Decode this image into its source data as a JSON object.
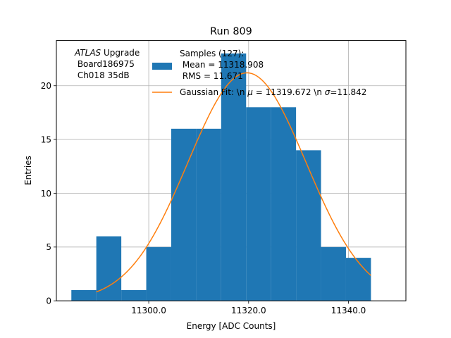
{
  "chart_data": {
    "type": "bar",
    "title": "Run 809",
    "xlabel": "Energy [ADC Counts]",
    "ylabel": "Entries",
    "xlim": [
      11281.5,
      11351.5
    ],
    "ylim": [
      0,
      24.2
    ],
    "grid": true,
    "x_ticks": [
      11300.0,
      11320.0,
      11340.0
    ],
    "x_tick_labels": [
      "11300.0",
      "11320.0",
      "11340.0"
    ],
    "y_ticks": [
      0,
      5,
      10,
      15,
      20
    ],
    "y_tick_labels": [
      "0",
      "5",
      "10",
      "15",
      "20"
    ],
    "histogram": {
      "bin_edges": [
        11284.5,
        11289.5,
        11294.5,
        11299.5,
        11304.5,
        11309.5,
        11314.5,
        11319.5,
        11324.5,
        11329.5,
        11334.5,
        11339.5,
        11344.5
      ],
      "counts": [
        1,
        6,
        1,
        5,
        16,
        16,
        23,
        18,
        18,
        14,
        5,
        4
      ],
      "color": "#1f77b4"
    },
    "fit": {
      "mu": 11319.672,
      "sigma": 11.842,
      "amplitude": 21.2,
      "x_range": [
        11289.5,
        11344.5
      ],
      "color": "#ff7f0e"
    },
    "annotation": {
      "italic": "ATLAS",
      "line1": " Upgrade",
      "line2": " Board186975",
      "line3": " Ch018 35dB"
    },
    "legend": {
      "placement": "top-center",
      "hist_line1": "Samples (127):",
      "hist_line2": " Mean = 11318.908",
      "hist_line3": " RMS = 11.671",
      "fit_prefix": "Gaussian Fit: \\n ",
      "fit_mu_symbol": "μ",
      "fit_middle": " = 11319.672 \\n ",
      "fit_sigma_symbol": "σ",
      "fit_suffix": "=11.842"
    }
  }
}
